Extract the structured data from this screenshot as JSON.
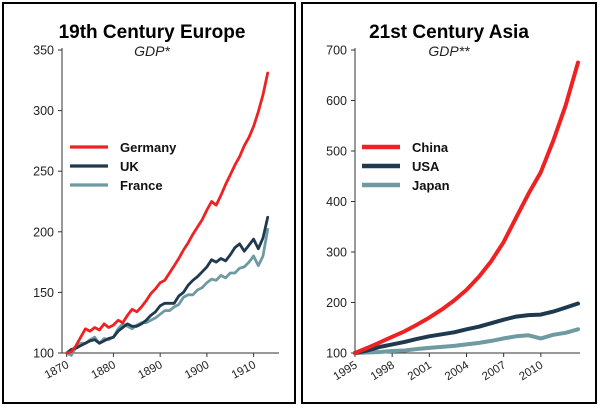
{
  "chart_data": [
    {
      "type": "line",
      "title": "19th Century Europe",
      "subtitle": "GDP*",
      "xlabel": "",
      "ylabel": "",
      "xlim": [
        1869,
        1915
      ],
      "ylim": [
        100,
        350
      ],
      "xticks": [
        1870,
        1880,
        1890,
        1900,
        1910
      ],
      "xtick_labels": [
        "1870",
        "1880",
        "1890",
        "1900",
        "1910"
      ],
      "yticks": [
        100,
        150,
        200,
        250,
        300,
        350
      ],
      "ytick_labels": [
        "100",
        "150",
        "200",
        "250",
        "300",
        "350"
      ],
      "grid": false,
      "legend": "upper-left",
      "x": [
        1870,
        1871,
        1872,
        1873,
        1874,
        1875,
        1876,
        1877,
        1878,
        1879,
        1880,
        1881,
        1882,
        1883,
        1884,
        1885,
        1886,
        1887,
        1888,
        1889,
        1890,
        1891,
        1892,
        1893,
        1894,
        1895,
        1896,
        1897,
        1898,
        1899,
        1900,
        1901,
        1902,
        1903,
        1904,
        1905,
        1906,
        1907,
        1908,
        1909,
        1910,
        1911,
        1912,
        1913
      ],
      "series": [
        {
          "name": "Germany",
          "color": "#ee2222",
          "values": [
            100,
            101,
            106,
            113,
            120,
            118,
            121,
            119,
            124,
            121,
            123,
            127,
            125,
            131,
            136,
            134,
            138,
            143,
            149,
            153,
            158,
            160,
            166,
            172,
            178,
            185,
            191,
            198,
            204,
            210,
            218,
            225,
            222,
            230,
            239,
            247,
            255,
            262,
            271,
            278,
            287,
            299,
            313,
            331
          ]
        },
        {
          "name": "UK",
          "color": "#1f3a4f",
          "values": [
            100,
            103,
            104,
            106,
            108,
            110,
            111,
            108,
            110,
            112,
            113,
            118,
            121,
            124,
            122,
            122,
            124,
            127,
            131,
            134,
            139,
            141,
            141,
            141,
            147,
            150,
            156,
            160,
            163,
            167,
            171,
            177,
            175,
            178,
            176,
            181,
            187,
            190,
            184,
            189,
            194,
            186,
            195,
            212
          ]
        },
        {
          "name": "France",
          "color": "#6f9aa2",
          "values": [
            100,
            98,
            105,
            108,
            108,
            111,
            113,
            108,
            112,
            111,
            113,
            120,
            124,
            122,
            120,
            123,
            125,
            125,
            127,
            129,
            132,
            135,
            135,
            138,
            140,
            146,
            148,
            148,
            152,
            154,
            158,
            161,
            160,
            164,
            162,
            166,
            166,
            170,
            171,
            175,
            180,
            172,
            180,
            202
          ]
        }
      ]
    },
    {
      "type": "line",
      "title": "21st Century Asia",
      "subtitle": "GDP**",
      "xlabel": "",
      "ylabel": "",
      "xlim": [
        1995,
        2013
      ],
      "ylim": [
        100,
        700
      ],
      "xticks": [
        1995,
        1998,
        2001,
        2004,
        2007,
        2010
      ],
      "xtick_labels": [
        "1995",
        "1998",
        "2001",
        "2004",
        "2007",
        "2010"
      ],
      "yticks": [
        100,
        200,
        300,
        400,
        500,
        600,
        700
      ],
      "ytick_labels": [
        "100",
        "200",
        "300",
        "400",
        "500",
        "600",
        "700"
      ],
      "grid": false,
      "legend": "upper-left",
      "x": [
        1995,
        1996,
        1997,
        1998,
        1999,
        2000,
        2001,
        2002,
        2003,
        2004,
        2005,
        2006,
        2007,
        2008,
        2009,
        2010,
        2011,
        2012,
        2013
      ],
      "series": [
        {
          "name": "China",
          "color": "#ee2222",
          "values": [
            100,
            110,
            121,
            132,
            143,
            156,
            170,
            186,
            204,
            225,
            251,
            282,
            320,
            368,
            415,
            458,
            520,
            590,
            675
          ]
        },
        {
          "name": "USA",
          "color": "#1f3a4f",
          "values": [
            100,
            105,
            112,
            117,
            122,
            128,
            133,
            137,
            141,
            147,
            152,
            159,
            166,
            172,
            175,
            176,
            182,
            190,
            198
          ]
        },
        {
          "name": "Japan",
          "color": "#6f9aa2",
          "values": [
            100,
            101,
            102,
            104,
            105,
            108,
            110,
            112,
            114,
            117,
            120,
            124,
            129,
            133,
            135,
            129,
            136,
            140,
            147
          ]
        }
      ]
    }
  ]
}
